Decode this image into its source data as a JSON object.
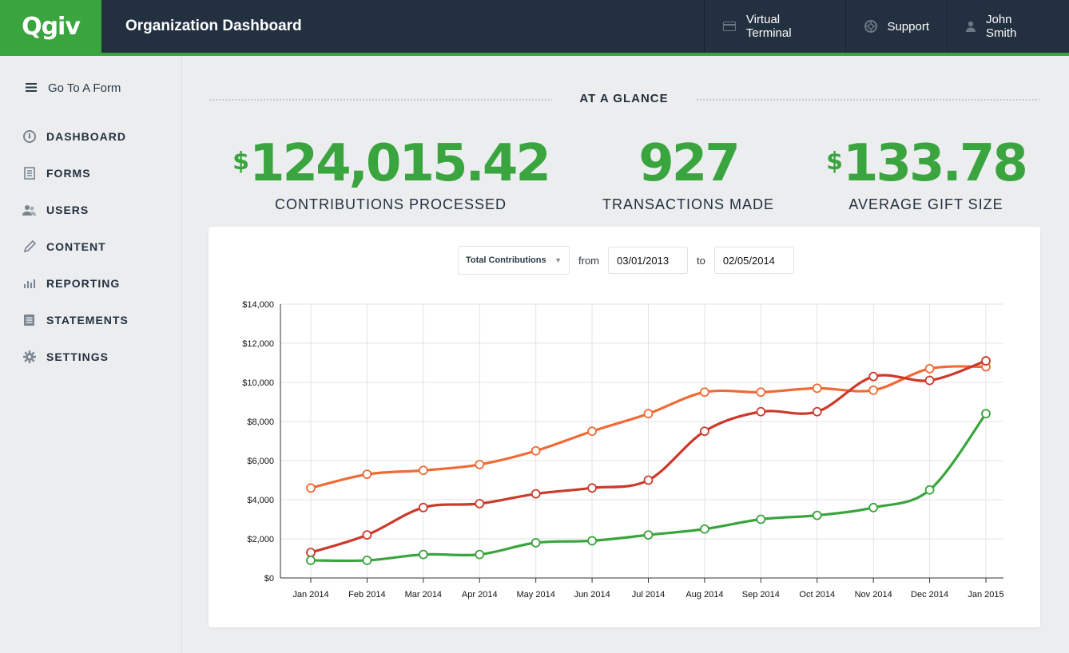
{
  "header": {
    "logo_text": "Qgiv",
    "title": "Organization Dashboard",
    "nav": [
      {
        "label": "Virtual Terminal",
        "icon": "card-icon"
      },
      {
        "label": "Support",
        "icon": "lifebuoy-icon"
      },
      {
        "label": "John Smith",
        "icon": "user-icon"
      }
    ]
  },
  "sidebar": {
    "goto": {
      "label": "Go To A Form",
      "icon": "menu-icon"
    },
    "items": [
      {
        "label": "DASHBOARD",
        "icon": "gauge-icon"
      },
      {
        "label": "FORMS",
        "icon": "document-icon"
      },
      {
        "label": "USERS",
        "icon": "users-icon"
      },
      {
        "label": "CONTENT",
        "icon": "pencil-icon"
      },
      {
        "label": "REPORTING",
        "icon": "bar-chart-icon"
      },
      {
        "label": "STATEMENTS",
        "icon": "statement-icon"
      },
      {
        "label": "SETTINGS",
        "icon": "gear-icon"
      }
    ]
  },
  "glance": {
    "title": "AT A GLANCE",
    "stats": [
      {
        "prefix": "$",
        "value": "124,015.42",
        "label": "CONTRIBUTIONS PROCESSED"
      },
      {
        "prefix": "",
        "value": "927",
        "label": "TRANSACTIONS MADE"
      },
      {
        "prefix": "$",
        "value": "133.78",
        "label": "AVERAGE GIFT SIZE"
      }
    ]
  },
  "filters": {
    "metric": "Total Contributions",
    "from_label": "from",
    "from_date": "03/01/2013",
    "to_label": "to",
    "to_date": "02/05/2014"
  },
  "colors": {
    "brand_green": "#3aa43e",
    "header_bg": "#233040"
  },
  "chart_data": {
    "type": "line",
    "categories": [
      "Jan 2014",
      "Feb 2014",
      "Mar 2014",
      "Apr 2014",
      "May 2014",
      "Jun 2014",
      "Jul 2014",
      "Aug 2014",
      "Sep 2014",
      "Oct 2014",
      "Nov 2014",
      "Dec 2014",
      "Jan 2015"
    ],
    "y_tick_labels": [
      "$0",
      "$2,000",
      "$4,000",
      "$6,000",
      "$8,000",
      "$10,000",
      "$12,000",
      "$14,000"
    ],
    "ylim": [
      0,
      14000
    ],
    "grid": true,
    "legend": "none",
    "series": [
      {
        "color": "#ef6b35",
        "values": [
          4600,
          5300,
          5500,
          5800,
          6500,
          7500,
          8400,
          9500,
          9500,
          9700,
          9600,
          10700,
          10800
        ]
      },
      {
        "color": "#cc3a2c",
        "values": [
          1300,
          2200,
          3600,
          3800,
          4300,
          4600,
          5000,
          7500,
          8500,
          8500,
          10300,
          10100,
          11100
        ]
      },
      {
        "color": "#3aa43e",
        "values": [
          900,
          900,
          1200,
          1200,
          1800,
          1900,
          2200,
          2500,
          3000,
          3200,
          3600,
          4500,
          8400
        ]
      }
    ]
  }
}
